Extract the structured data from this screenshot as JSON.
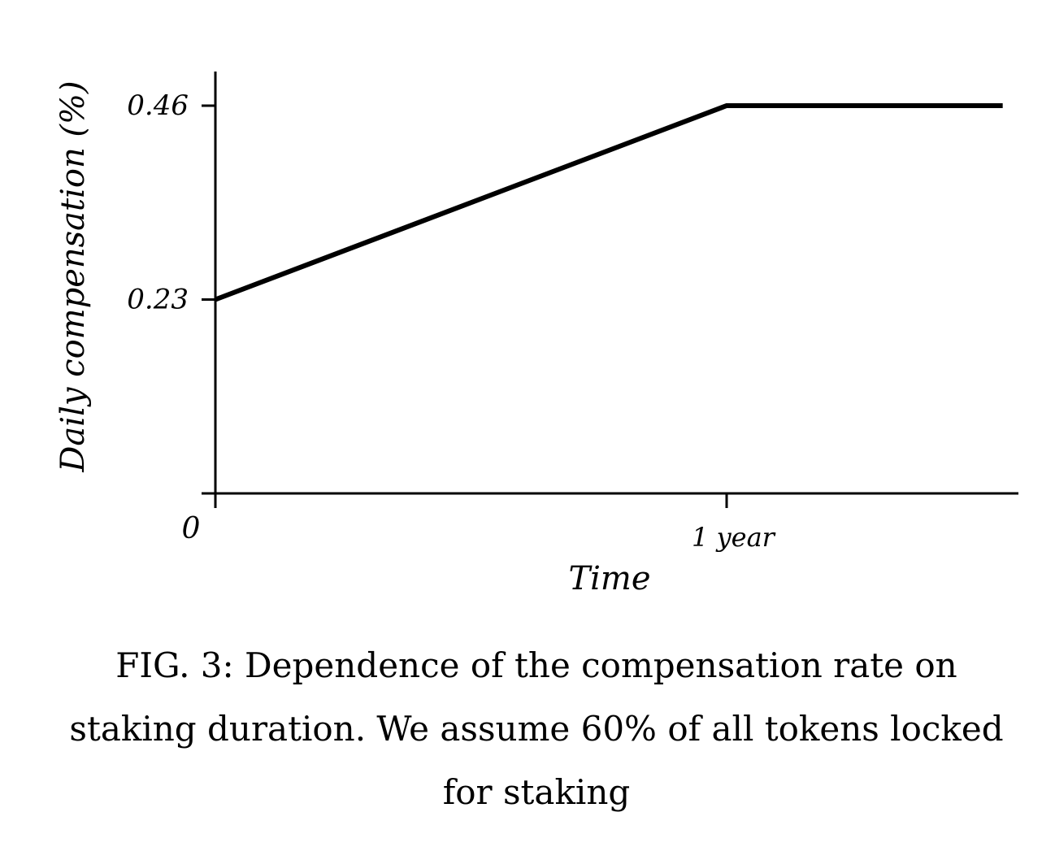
{
  "chart_data": {
    "type": "line",
    "xlabel": "Time",
    "ylabel": "Daily compensation (%)",
    "x_tick_labels": [
      "0",
      "1 year"
    ],
    "y_tick_labels": [
      "0.23",
      "0.46"
    ],
    "y_ticks": [
      0.23,
      0.46
    ],
    "x_ticks_years": [
      0,
      1
    ],
    "ylim": [
      0,
      0.5
    ],
    "xlim_years": [
      0,
      1.57
    ],
    "grid": false,
    "series": [
      {
        "x_years": [
          0,
          1,
          1.54
        ],
        "values": [
          0.23,
          0.46,
          0.46
        ]
      }
    ]
  },
  "caption": "FIG. 3: Dependence of the compensation rate on staking duration. We assume 60% of all tokens locked for staking"
}
